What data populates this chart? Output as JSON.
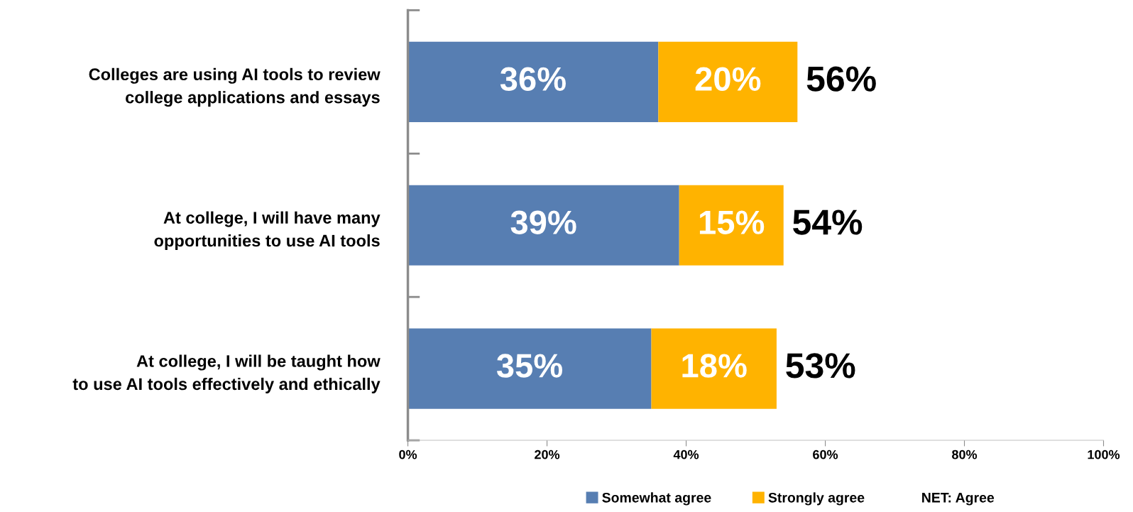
{
  "chart_data": {
    "type": "bar",
    "orientation": "horizontal",
    "stacked": true,
    "categories": [
      "Colleges are using AI tools to review\ncollege applications and essays",
      "At college, I will have many\nopportunities to use AI tools",
      "At college, I will be taught how\nto use AI tools effectively and ethically"
    ],
    "series": [
      {
        "name": "Somewhat agree",
        "color": "#577eb2",
        "values": [
          36,
          39,
          35
        ],
        "value_labels": [
          "36%",
          "39%",
          "35%"
        ]
      },
      {
        "name": "Strongly agree",
        "color": "#ffb300",
        "values": [
          20,
          15,
          18
        ],
        "value_labels": [
          "20%",
          "15%",
          "18%"
        ]
      }
    ],
    "totals": [
      "56%",
      "54%",
      "53%"
    ],
    "xlim": [
      0,
      100
    ],
    "xticks": [
      {
        "value": 0,
        "label": "0%"
      },
      {
        "value": 20,
        "label": "20%"
      },
      {
        "value": 40,
        "label": "40%"
      },
      {
        "value": 60,
        "label": "60%"
      },
      {
        "value": 80,
        "label": "80%"
      },
      {
        "value": 100,
        "label": "100%"
      }
    ],
    "legend": "bottom",
    "annotations": [
      "NET: Agree"
    ],
    "grid": false
  }
}
